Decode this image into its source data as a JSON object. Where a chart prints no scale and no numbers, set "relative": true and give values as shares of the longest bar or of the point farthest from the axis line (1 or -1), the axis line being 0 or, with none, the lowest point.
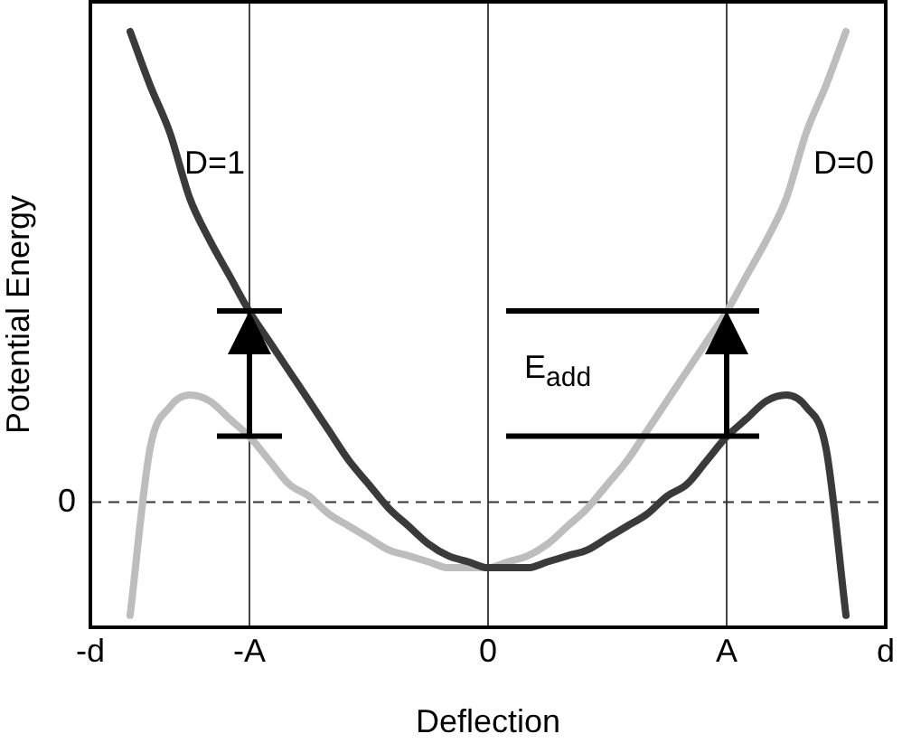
{
  "chart_data": {
    "type": "line",
    "relative": true,
    "xlabel": "Deflection",
    "ylabel": "Potential Energy",
    "categories": [
      "-d",
      null,
      null,
      null,
      null,
      null,
      null,
      null,
      "-A",
      null,
      null,
      null,
      null,
      null,
      null,
      null,
      null,
      null,
      null,
      null,
      "0",
      null,
      null,
      null,
      null,
      null,
      null,
      null,
      null,
      null,
      null,
      null,
      "A",
      null,
      null,
      null,
      null,
      null,
      null,
      null,
      "d"
    ],
    "grid": "x",
    "legend": false,
    "ref_lines": [
      {
        "axis": "y",
        "value": 0.21,
        "label": "0"
      }
    ],
    "annotations": [
      "E$_{add}$"
    ],
    "series": [
      {
        "name": "D=1",
        "color": "#3a3a3a",
        "values": [
          null,
          null,
          1.0,
          0.91,
          0.83,
          0.72,
          0.65,
          0.59,
          0.53,
          0.48,
          0.43,
          0.38,
          0.33,
          0.28,
          0.24,
          0.2,
          0.17,
          0.14,
          0.12,
          0.11,
          0.1,
          0.1,
          0.1,
          0.11,
          0.12,
          0.13,
          0.15,
          0.17,
          0.19,
          0.22,
          0.24,
          0.28,
          0.32,
          0.35,
          0.38,
          0.39,
          0.37,
          0.3,
          0.02,
          null,
          null
        ]
      },
      {
        "name": "D=0",
        "color": "#bdbdbd",
        "values": [
          null,
          null,
          0.02,
          0.3,
          0.37,
          0.39,
          0.38,
          0.35,
          0.32,
          0.28,
          0.24,
          0.22,
          0.19,
          0.17,
          0.15,
          0.13,
          0.12,
          0.11,
          0.1,
          0.1,
          0.1,
          0.11,
          0.12,
          0.14,
          0.17,
          0.2,
          0.24,
          0.28,
          0.33,
          0.38,
          0.43,
          0.48,
          0.53,
          0.59,
          0.65,
          0.72,
          0.83,
          0.91,
          1.0,
          null,
          null
        ]
      }
    ]
  }
}
